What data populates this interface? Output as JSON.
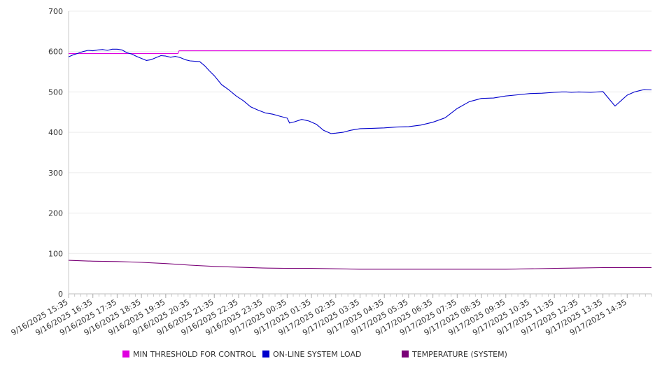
{
  "chart_data": {
    "type": "line",
    "title": "",
    "xlabel": "",
    "ylabel": "",
    "ylim": [
      0,
      700
    ],
    "y_ticks": [
      "0",
      "100",
      "200",
      "300",
      "400",
      "500",
      "600",
      "700"
    ],
    "grid": "horizontal",
    "legend_position": "bottom",
    "x_tick_labels": [
      "9/16/2025 15:35",
      "9/16/2025 16:35",
      "9/16/2025 17:35",
      "9/16/2025 18:35",
      "9/16/2025 19:35",
      "9/16/2025 20:35",
      "9/16/2025 21:35",
      "9/16/2025 22:35",
      "9/16/2025 23:35",
      "9/17/2025 00:35",
      "9/17/2025 01:35",
      "9/17/2025 02:35",
      "9/17/2025 03:35",
      "9/17/2025 04:35",
      "9/17/2025 05:35",
      "9/17/2025 06:35",
      "9/17/2025 07:35",
      "9/17/2025 08:35",
      "9/17/2025 09:35",
      "9/17/2025 10:35",
      "9/17/2025 11:35",
      "9/17/2025 12:35",
      "9/17/2025 13:35",
      "9/17/2025 14:35"
    ],
    "x_domain": [
      0,
      24
    ],
    "series": [
      {
        "name": "MIN THRESHOLD FOR CONTROL",
        "color": "#e000e0",
        "x": [
          0,
          4.5,
          4.55,
          24
        ],
        "values": [
          595,
          595,
          602,
          602
        ]
      },
      {
        "name": "ON-LINE SYSTEM LOAD",
        "color": "#0000cc",
        "x": [
          0,
          0.2,
          0.4,
          0.6,
          0.8,
          1.0,
          1.2,
          1.4,
          1.6,
          1.8,
          2.0,
          2.2,
          2.4,
          2.6,
          2.8,
          3.0,
          3.2,
          3.4,
          3.6,
          3.8,
          4.0,
          4.2,
          4.4,
          4.6,
          4.8,
          5.0,
          5.2,
          5.4,
          5.6,
          5.8,
          6.0,
          6.3,
          6.6,
          6.9,
          7.2,
          7.5,
          7.8,
          8.1,
          8.4,
          8.7,
          9.0,
          9.1,
          9.3,
          9.6,
          9.9,
          10.2,
          10.5,
          10.8,
          11.0,
          11.3,
          11.6,
          12.0,
          12.5,
          13.0,
          13.5,
          14.0,
          14.5,
          15.0,
          15.5,
          16.0,
          16.5,
          17.0,
          17.5,
          18.0,
          18.5,
          19.0,
          19.5,
          20.0,
          20.3,
          20.5,
          20.7,
          21.0,
          21.5,
          22.0,
          22.5,
          23.0,
          23.3,
          23.5,
          23.7,
          24.0
        ],
        "values": [
          587,
          592,
          596,
          600,
          603,
          602,
          604,
          605,
          603,
          606,
          606,
          604,
          597,
          594,
          588,
          583,
          578,
          580,
          585,
          590,
          589,
          586,
          588,
          585,
          580,
          577,
          576,
          575,
          565,
          552,
          540,
          518,
          505,
          490,
          478,
          463,
          455,
          448,
          445,
          440,
          435,
          423,
          426,
          432,
          428,
          420,
          405,
          397,
          398,
          400,
          405,
          409,
          410,
          411,
          413,
          414,
          418,
          425,
          436,
          459,
          476,
          484,
          485,
          490,
          493,
          496,
          497,
          499,
          500,
          500,
          499,
          500,
          499,
          501,
          465,
          492,
          500,
          503,
          506,
          505
        ]
      },
      {
        "name": "TEMPERATURE (SYSTEM)",
        "color": "#7a0077",
        "x": [
          0,
          1,
          2,
          3,
          4,
          5,
          6,
          7,
          8,
          9,
          10,
          11,
          12,
          13,
          14,
          15,
          16,
          17,
          18,
          19,
          20,
          21,
          22,
          23,
          24
        ],
        "values": [
          83,
          81,
          80,
          78,
          75,
          71,
          68,
          66,
          64,
          63,
          63,
          62,
          61,
          61,
          61,
          61,
          61,
          61,
          61,
          62,
          63,
          64,
          65,
          65,
          65
        ]
      }
    ]
  },
  "legend": {
    "items": [
      {
        "label": "MIN THRESHOLD FOR CONTROL",
        "color": "#e000e0"
      },
      {
        "label": "ON-LINE SYSTEM LOAD",
        "color": "#0000cc"
      },
      {
        "label": "TEMPERATURE (SYSTEM)",
        "color": "#7a0077"
      }
    ]
  }
}
